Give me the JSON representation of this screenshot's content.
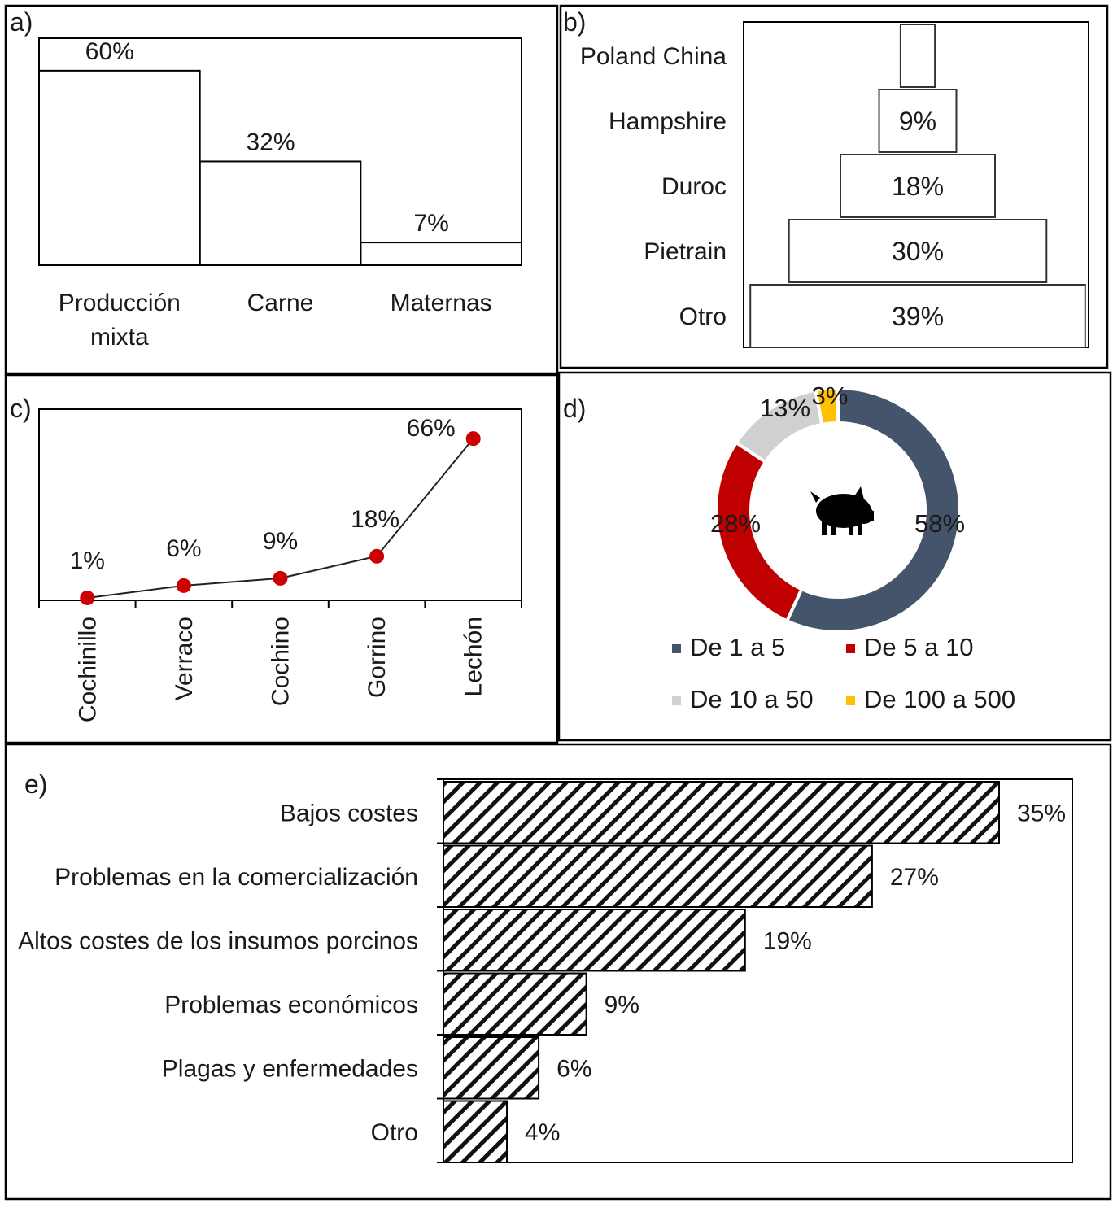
{
  "chart_data": [
    {
      "panel": "a)",
      "type": "bar",
      "categories": [
        "Producción mixta",
        "Carne",
        "Maternas"
      ],
      "values": [
        60,
        32,
        7
      ],
      "value_labels": [
        "60%",
        "32%",
        "7%"
      ],
      "ylim": [
        0,
        70
      ],
      "grid": false
    },
    {
      "panel": "b)",
      "type": "bar",
      "orientation": "horizontal-pyramid",
      "categories": [
        "Poland China",
        "Hampshire",
        "Duroc",
        "Pietrain",
        "Otro"
      ],
      "values": [
        4,
        9,
        18,
        30,
        39
      ],
      "value_labels": [
        "",
        "9%",
        "18%",
        "30%",
        "39%"
      ],
      "grid": false
    },
    {
      "panel": "c)",
      "type": "line",
      "categories": [
        "Cochinillo",
        "Verraco",
        "Cochino",
        "Gorrino",
        "Lechón"
      ],
      "values": [
        1,
        6,
        9,
        18,
        66
      ],
      "value_labels": [
        "1%",
        "6%",
        "9%",
        "18%",
        "66%"
      ],
      "ylim": [
        0,
        78
      ],
      "marker_color": "#cc0000",
      "grid": false
    },
    {
      "panel": "d)",
      "type": "pie",
      "donut": true,
      "icon": "pig-icon",
      "slices": [
        {
          "name": "De 1 a 5",
          "value": 58,
          "label": "58%",
          "color": "#44546a"
        },
        {
          "name": "De 5 a 10",
          "value": 28,
          "label": "28%",
          "color": "#c00000"
        },
        {
          "name": "De 10 a 50",
          "value": 13,
          "label": "13%",
          "color": "#d0d0d0"
        },
        {
          "name": "De 100 a 500",
          "value": 3,
          "label": "3%",
          "color": "#ffc000"
        }
      ],
      "legend_position": "bottom"
    },
    {
      "panel": "e)",
      "type": "bar",
      "orientation": "horizontal",
      "categories": [
        "Bajos costes",
        "Problemas en la comercialización",
        "Altos costes de los insumos porcinos",
        "Problemas económicos",
        "Plagas y enfermedades",
        "Otro"
      ],
      "values": [
        35,
        27,
        19,
        9,
        6,
        4
      ],
      "value_labels": [
        "35%",
        "27%",
        "19%",
        "9%",
        "6%",
        "4%"
      ],
      "xlim": [
        0,
        40
      ],
      "fill": "diagonal-hatch",
      "grid": false
    }
  ]
}
